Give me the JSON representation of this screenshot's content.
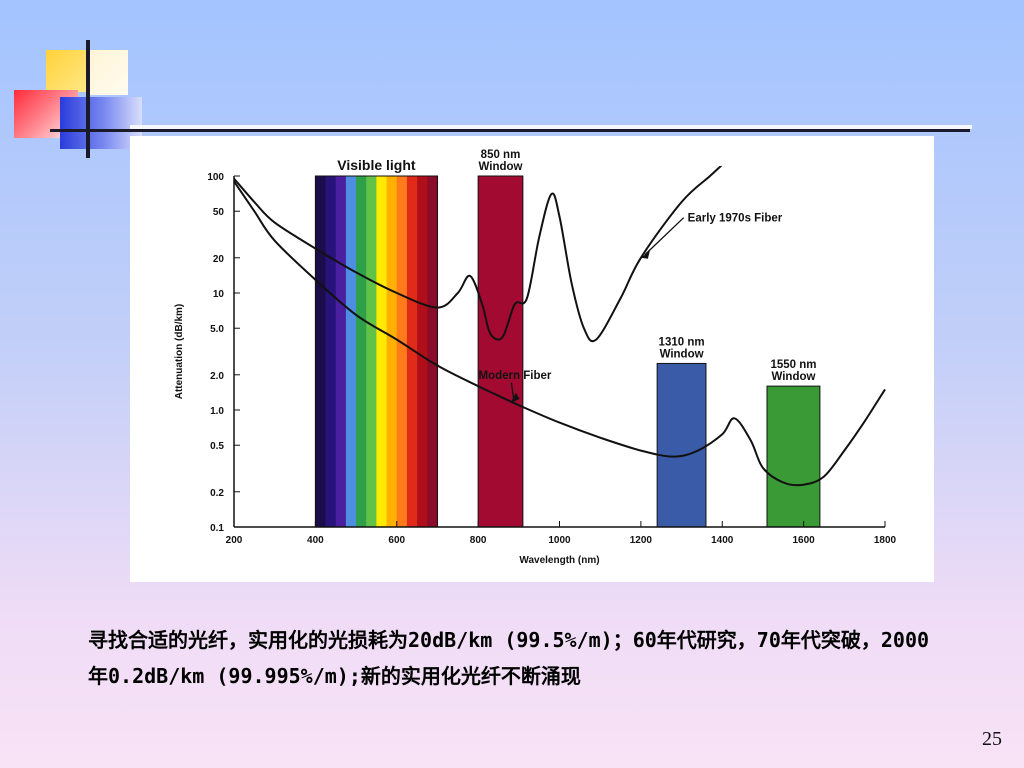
{
  "caption": "寻找合适的光纤，实用化的光损耗为20dB/km (99.5%/m)；60年代研究，70年代突破，2000年0.2dB/km (99.995%/m);新的实用化光纤不断涌现",
  "slide_number": "25",
  "chart_data": {
    "type": "line",
    "xlabel": "Wavelength (nm)",
    "ylabel": "Attenuation (dB/km)",
    "x_ticks": [
      200,
      400,
      600,
      800,
      1000,
      1200,
      1400,
      1600,
      1800
    ],
    "y_ticks": [
      100,
      50,
      20,
      10,
      5.0,
      2.0,
      1.0,
      0.5,
      0.2,
      0.1
    ],
    "y_tick_labels": [
      "100",
      "50",
      "20",
      "10",
      "5.0",
      "2.0",
      "1.0",
      "0.5",
      "0.2",
      "0.1"
    ],
    "xlim": [
      200,
      1800
    ],
    "ylim": [
      0.1,
      100
    ],
    "y_scale": "log",
    "series": [
      {
        "name": "Early 1970s Fiber",
        "points": [
          [
            200,
            95
          ],
          [
            250,
            60
          ],
          [
            300,
            40
          ],
          [
            400,
            24
          ],
          [
            500,
            15
          ],
          [
            600,
            10
          ],
          [
            700,
            7.5
          ],
          [
            750,
            10
          ],
          [
            780,
            14
          ],
          [
            810,
            8
          ],
          [
            830,
            4.5
          ],
          [
            860,
            4.2
          ],
          [
            890,
            8
          ],
          [
            920,
            9
          ],
          [
            950,
            30
          ],
          [
            980,
            70
          ],
          [
            1000,
            45
          ],
          [
            1030,
            12
          ],
          [
            1060,
            5
          ],
          [
            1090,
            4
          ],
          [
            1150,
            9
          ],
          [
            1200,
            20
          ],
          [
            1300,
            60
          ],
          [
            1370,
            100
          ],
          [
            1400,
            125
          ]
        ]
      },
      {
        "name": "Modern Fiber",
        "points": [
          [
            200,
            90
          ],
          [
            250,
            50
          ],
          [
            300,
            28
          ],
          [
            400,
            13
          ],
          [
            500,
            6.5
          ],
          [
            600,
            4
          ],
          [
            700,
            2.4
          ],
          [
            800,
            1.6
          ],
          [
            900,
            1.1
          ],
          [
            1000,
            0.78
          ],
          [
            1100,
            0.58
          ],
          [
            1200,
            0.45
          ],
          [
            1280,
            0.4
          ],
          [
            1340,
            0.45
          ],
          [
            1400,
            0.62
          ],
          [
            1430,
            0.85
          ],
          [
            1470,
            0.55
          ],
          [
            1500,
            0.32
          ],
          [
            1550,
            0.24
          ],
          [
            1600,
            0.23
          ],
          [
            1650,
            0.27
          ],
          [
            1700,
            0.45
          ],
          [
            1750,
            0.8
          ],
          [
            1800,
            1.5
          ]
        ]
      }
    ],
    "bands": [
      {
        "label": "Visible light",
        "x0": 400,
        "x1": 700,
        "type": "spectrum"
      },
      {
        "label": "850 nm Window",
        "label_lines": [
          "850 nm",
          "Window"
        ],
        "x0": 800,
        "x1": 910,
        "top": 100,
        "color": "#a20a32"
      },
      {
        "label": "1310 nm Window",
        "label_lines": [
          "1310 nm",
          "Window"
        ],
        "x0": 1240,
        "x1": 1360,
        "top": 2.5,
        "color": "#3a5ba8"
      },
      {
        "label": "1550 nm Window",
        "label_lines": [
          "1550 nm",
          "Window"
        ],
        "x0": 1510,
        "x1": 1640,
        "top": 1.6,
        "color": "#3a9a35"
      }
    ],
    "spectrum_colors": [
      "#1a0d4a",
      "#27137a",
      "#4a1fa0",
      "#4e8ee0",
      "#2ea04a",
      "#62c248",
      "#ffea00",
      "#ffb000",
      "#ff7a1a",
      "#e02a1a",
      "#b00f1a",
      "#8a0c2a"
    ]
  }
}
